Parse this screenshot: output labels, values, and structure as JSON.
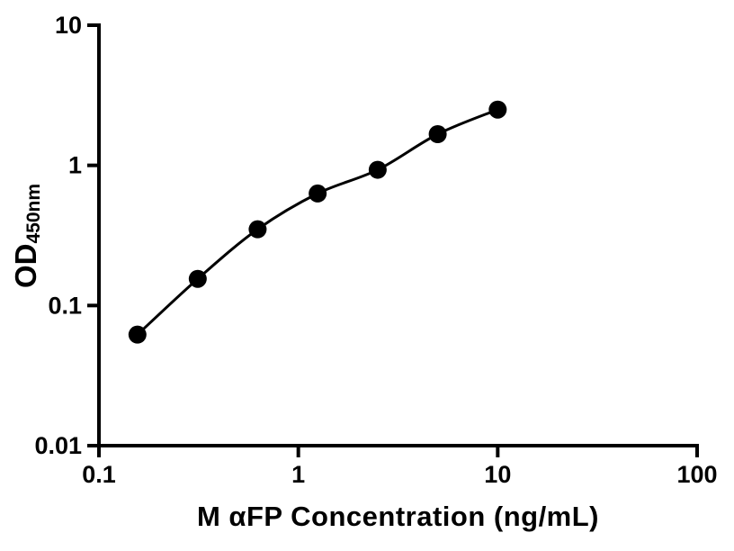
{
  "figure": {
    "background": "#ffffff",
    "axis_color": "#000000",
    "text_color": "#000000"
  },
  "chart_data": {
    "type": "scatter",
    "title": "",
    "xlabel": "M αFP Concentration (ng/mL)",
    "ylabel": "OD",
    "ylabel_subscript": "450nm",
    "x_scale": "log",
    "y_scale": "log",
    "xlim": [
      0.1,
      100
    ],
    "ylim": [
      0.01,
      10
    ],
    "x_ticks": [
      0.1,
      1,
      10,
      100
    ],
    "x_tick_labels": [
      "0.1",
      "1",
      "10",
      "100"
    ],
    "y_ticks": [
      0.01,
      0.1,
      1,
      10
    ],
    "y_tick_labels": [
      "0.01",
      "0.1",
      "1",
      "10"
    ],
    "grid": false,
    "legend": false,
    "series": [
      {
        "name": "standard-curve",
        "marker": "filled-circle",
        "marker_color": "#000000",
        "marker_radius": 10,
        "line_style": "smooth",
        "line_color": "#000000",
        "line_width": 3,
        "x": [
          0.156,
          0.313,
          0.625,
          1.25,
          2.5,
          5,
          10
        ],
        "y": [
          0.062,
          0.155,
          0.35,
          0.63,
          0.93,
          1.67,
          2.5
        ]
      }
    ]
  }
}
